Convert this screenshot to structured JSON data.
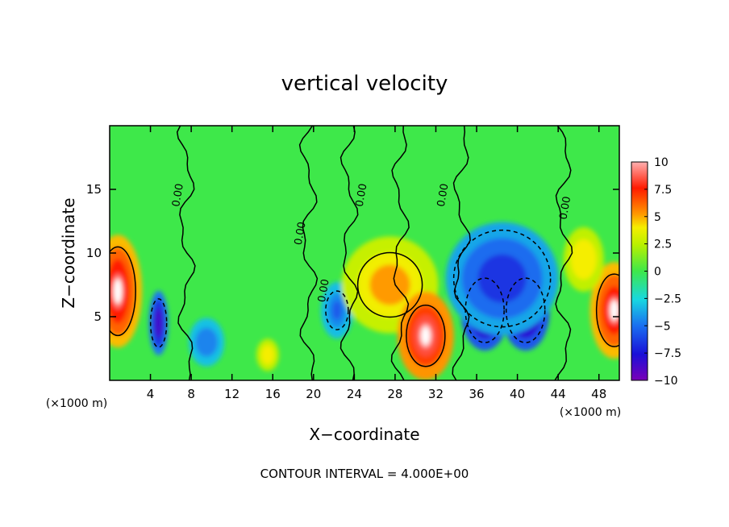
{
  "chart_data": {
    "type": "heatmap",
    "title": "vertical velocity",
    "xlabel": "X−coordinate",
    "ylabel": "Z−coordinate",
    "x_unit_left": "(×1000 m)",
    "x_unit_right": "(×1000 m)",
    "footer": "CONTOUR INTERVAL = 4.000E+00",
    "xlim": [
      0,
      50
    ],
    "ylim": [
      0,
      20
    ],
    "x_ticks": [
      4,
      8,
      12,
      16,
      20,
      24,
      28,
      32,
      36,
      40,
      44,
      48
    ],
    "x_tick_labels": [
      "4",
      "8",
      "12",
      "16",
      "20",
      "24",
      "28",
      "32",
      "36",
      "40",
      "44",
      "48"
    ],
    "y_ticks": [
      5,
      10,
      15
    ],
    "y_tick_labels": [
      "5",
      "10",
      "15"
    ],
    "colorbar": {
      "range": [
        -10,
        10
      ],
      "ticks": [
        10,
        7.5,
        5,
        2.5,
        0,
        -2.5,
        -5,
        -7.5,
        -10
      ],
      "tick_labels": [
        "10",
        "7.5",
        "5",
        "2.5",
        "0",
        "−2.5",
        "−5",
        "−7.5",
        "−10"
      ]
    },
    "contour_labels": [
      {
        "text": "0.00",
        "x": 7.0,
        "z": 14.5
      },
      {
        "text": "0.00",
        "x": 19.0,
        "z": 11.5
      },
      {
        "text": "0.00",
        "x": 21.3,
        "z": 7.0
      },
      {
        "text": "0.00",
        "x": 25.0,
        "z": 14.5
      },
      {
        "text": "0.00",
        "x": 33.0,
        "z": 14.5
      },
      {
        "text": "0.00",
        "x": 45.0,
        "z": 13.5
      }
    ],
    "features": [
      {
        "x": 0.8,
        "z": 7.0,
        "w": 9.0
      },
      {
        "x": 4.8,
        "z": 4.5,
        "w": -8.5
      },
      {
        "x": 9.5,
        "z": 3.0,
        "w": -4.5
      },
      {
        "x": 15.5,
        "z": 2.0,
        "w": 4.0
      },
      {
        "x": 22.3,
        "z": 5.5,
        "w": -5.5
      },
      {
        "x": 27.5,
        "z": 7.5,
        "w": 5.0
      },
      {
        "x": 31.0,
        "z": 3.5,
        "w": 10.0
      },
      {
        "x": 36.8,
        "z": 5.5,
        "w": -10.0
      },
      {
        "x": 40.8,
        "z": 5.5,
        "w": -10.0
      },
      {
        "x": 38.5,
        "z": 8.0,
        "w": -6.5
      },
      {
        "x": 49.5,
        "z": 5.5,
        "w": 9.0
      },
      {
        "x": 46.5,
        "z": 9.5,
        "w": 4.0
      }
    ]
  }
}
